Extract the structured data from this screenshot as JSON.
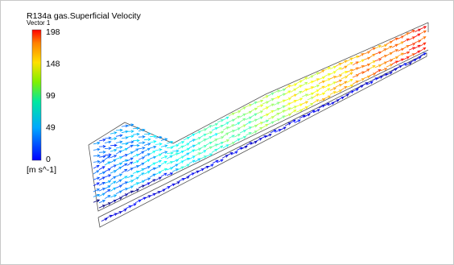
{
  "legend": {
    "title": "R134a gas.Superficial Velocity",
    "subtitle": "Vector 1",
    "ticks": [
      "198",
      "148",
      "99",
      "49",
      "0"
    ],
    "unit": "[m s^-1]"
  }
}
